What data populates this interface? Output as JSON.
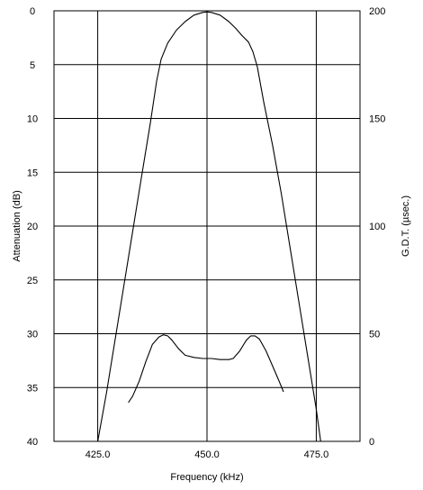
{
  "chart_data": {
    "type": "line",
    "xlabel": "Frequency (kHz)",
    "ylabel_left": "Attenuation (dB)",
    "ylabel_right": "G.D.T. (µsec.)",
    "xlim": [
      415.0,
      485.0
    ],
    "ylim_left": [
      0,
      40
    ],
    "ylim_right": [
      0,
      200
    ],
    "left_axis_inverted": true,
    "grid": true,
    "x_ticks": [
      {
        "value": 425.0,
        "label": "425.0"
      },
      {
        "value": 450.0,
        "label": "450.0"
      },
      {
        "value": 475.0,
        "label": "475.0"
      }
    ],
    "y_left_ticks": [
      {
        "value": 0,
        "label": "0"
      },
      {
        "value": 5,
        "label": "5"
      },
      {
        "value": 10,
        "label": "10"
      },
      {
        "value": 15,
        "label": "15"
      },
      {
        "value": 20,
        "label": "20"
      },
      {
        "value": 25,
        "label": "25"
      },
      {
        "value": 30,
        "label": "30"
      },
      {
        "value": 35,
        "label": "35"
      },
      {
        "value": 40,
        "label": "40"
      }
    ],
    "y_right_ticks": [
      {
        "value": 0,
        "label": "0"
      },
      {
        "value": 50,
        "label": "50"
      },
      {
        "value": 100,
        "label": "100"
      },
      {
        "value": 150,
        "label": "150"
      },
      {
        "value": 200,
        "label": "200"
      }
    ],
    "series": [
      {
        "axis": "left",
        "x": [
          425.0,
          427.0,
          429.0,
          431.0,
          433.0,
          435.0,
          437.0,
          438.5,
          439.5,
          441.0,
          443.0,
          445.0,
          447.0,
          449.0,
          450.0,
          451.0,
          453.0,
          455.0,
          456.5,
          458.0,
          459.5,
          460.5,
          461.5,
          463.0,
          465.0,
          467.0,
          469.0,
          471.0,
          473.0,
          475.0,
          476.0
        ],
        "y": [
          40.0,
          35.5,
          30.5,
          25.5,
          20.5,
          15.5,
          10.5,
          6.5,
          4.5,
          3.0,
          1.8,
          1.0,
          0.4,
          0.15,
          0.1,
          0.15,
          0.4,
          1.0,
          1.6,
          2.3,
          2.9,
          3.8,
          5.2,
          8.5,
          12.5,
          17.0,
          22.0,
          27.0,
          32.0,
          37.0,
          40.0
        ]
      },
      {
        "axis": "right",
        "x": [
          432.0,
          433.0,
          434.5,
          436.0,
          437.5,
          439.0,
          440.0,
          441.0,
          442.0,
          443.5,
          445.0,
          447.0,
          449.0,
          451.0,
          453.0,
          455.0,
          456.0,
          457.5,
          459.0,
          460.0,
          461.0,
          462.0,
          463.5,
          465.0,
          466.5,
          467.5
        ],
        "y": [
          18.0,
          21.0,
          28.0,
          37.0,
          45.0,
          48.5,
          49.5,
          49.0,
          47.0,
          43.0,
          40.0,
          39.0,
          38.5,
          38.5,
          38.0,
          38.0,
          38.5,
          42.0,
          47.0,
          49.0,
          49.0,
          47.5,
          42.0,
          35.0,
          28.0,
          23.0
        ]
      }
    ]
  }
}
